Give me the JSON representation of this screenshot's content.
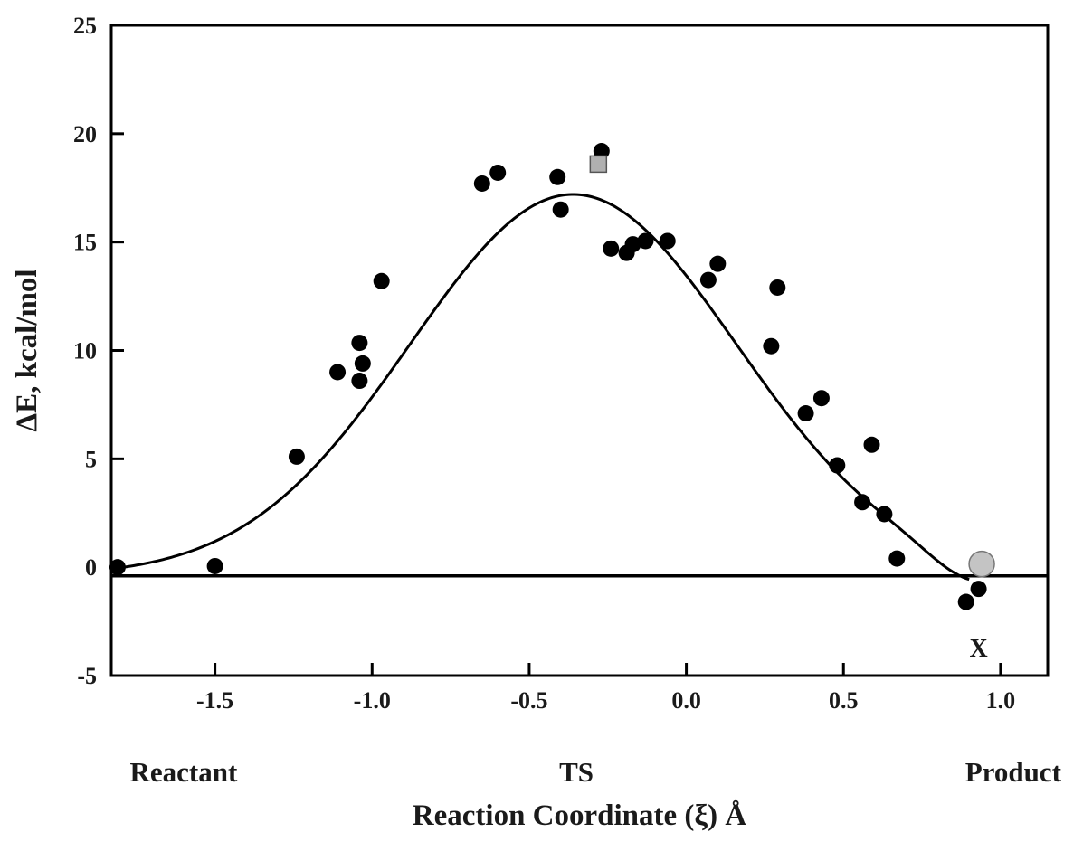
{
  "chart_data": {
    "type": "scatter",
    "title": "",
    "xlabel": "Reaction Coordinate (ξ) Å",
    "ylabel": "ΔE, kcal/mol",
    "xlim": [
      -1.83,
      1.15
    ],
    "ylim": [
      -5,
      25
    ],
    "x_ticks": [
      -1.5,
      -1.0,
      -0.5,
      0.0,
      0.5,
      1.0
    ],
    "x_tick_labels": [
      "-1.5",
      "-1.0",
      "-0.5",
      "0.0",
      "0.5",
      "1.0"
    ],
    "y_ticks": [
      -5,
      0,
      5,
      10,
      15,
      20,
      25
    ],
    "y_tick_labels": [
      "-5",
      "0",
      "5",
      "10",
      "15",
      "20",
      "25"
    ],
    "grid": false,
    "legend": "none",
    "region_labels": [
      {
        "text": "Reactant",
        "x": -1.6
      },
      {
        "text": "TS",
        "x": -0.35
      },
      {
        "text": "Product",
        "x": 1.04
      }
    ],
    "baseline_y": -0.4,
    "annotation": {
      "text": "X",
      "x": 0.93,
      "y": -3.7
    },
    "fit_curve": {
      "type": "gaussian",
      "peak_energy": 17.2,
      "peak_x": -0.36,
      "width": 0.52,
      "baseline": -0.4,
      "x_start": -1.83,
      "x_end": 0.9
    },
    "series": [
      {
        "marker": "circle",
        "color": "#000000",
        "points": [
          [
            -1.81,
            0.0
          ],
          [
            -1.5,
            0.05
          ],
          [
            -1.24,
            5.1
          ],
          [
            -1.11,
            9.0
          ],
          [
            -1.04,
            10.35
          ],
          [
            -1.03,
            9.4
          ],
          [
            -1.04,
            8.6
          ],
          [
            -0.97,
            13.2
          ],
          [
            -0.65,
            17.7
          ],
          [
            -0.6,
            18.2
          ],
          [
            -0.41,
            18.0
          ],
          [
            -0.4,
            16.5
          ],
          [
            -0.27,
            19.2
          ],
          [
            -0.24,
            14.7
          ],
          [
            -0.19,
            14.5
          ],
          [
            -0.17,
            14.9
          ],
          [
            -0.13,
            15.05
          ],
          [
            -0.06,
            15.05
          ],
          [
            0.07,
            13.25
          ],
          [
            0.1,
            14.0
          ],
          [
            0.27,
            10.2
          ],
          [
            0.29,
            12.9
          ],
          [
            0.38,
            7.1
          ],
          [
            0.43,
            7.8
          ],
          [
            0.48,
            4.7
          ],
          [
            0.56,
            3.0
          ],
          [
            0.59,
            5.65
          ],
          [
            0.63,
            2.45
          ],
          [
            0.67,
            0.4
          ],
          [
            0.89,
            -1.6
          ],
          [
            0.93,
            -1.0
          ]
        ]
      },
      {
        "marker": "square",
        "color": "#b0b0b0",
        "points": [
          [
            -0.28,
            18.6
          ]
        ]
      },
      {
        "marker": "circle-large",
        "color": "#c4c4c4",
        "points": [
          [
            0.94,
            0.15
          ]
        ]
      }
    ]
  }
}
